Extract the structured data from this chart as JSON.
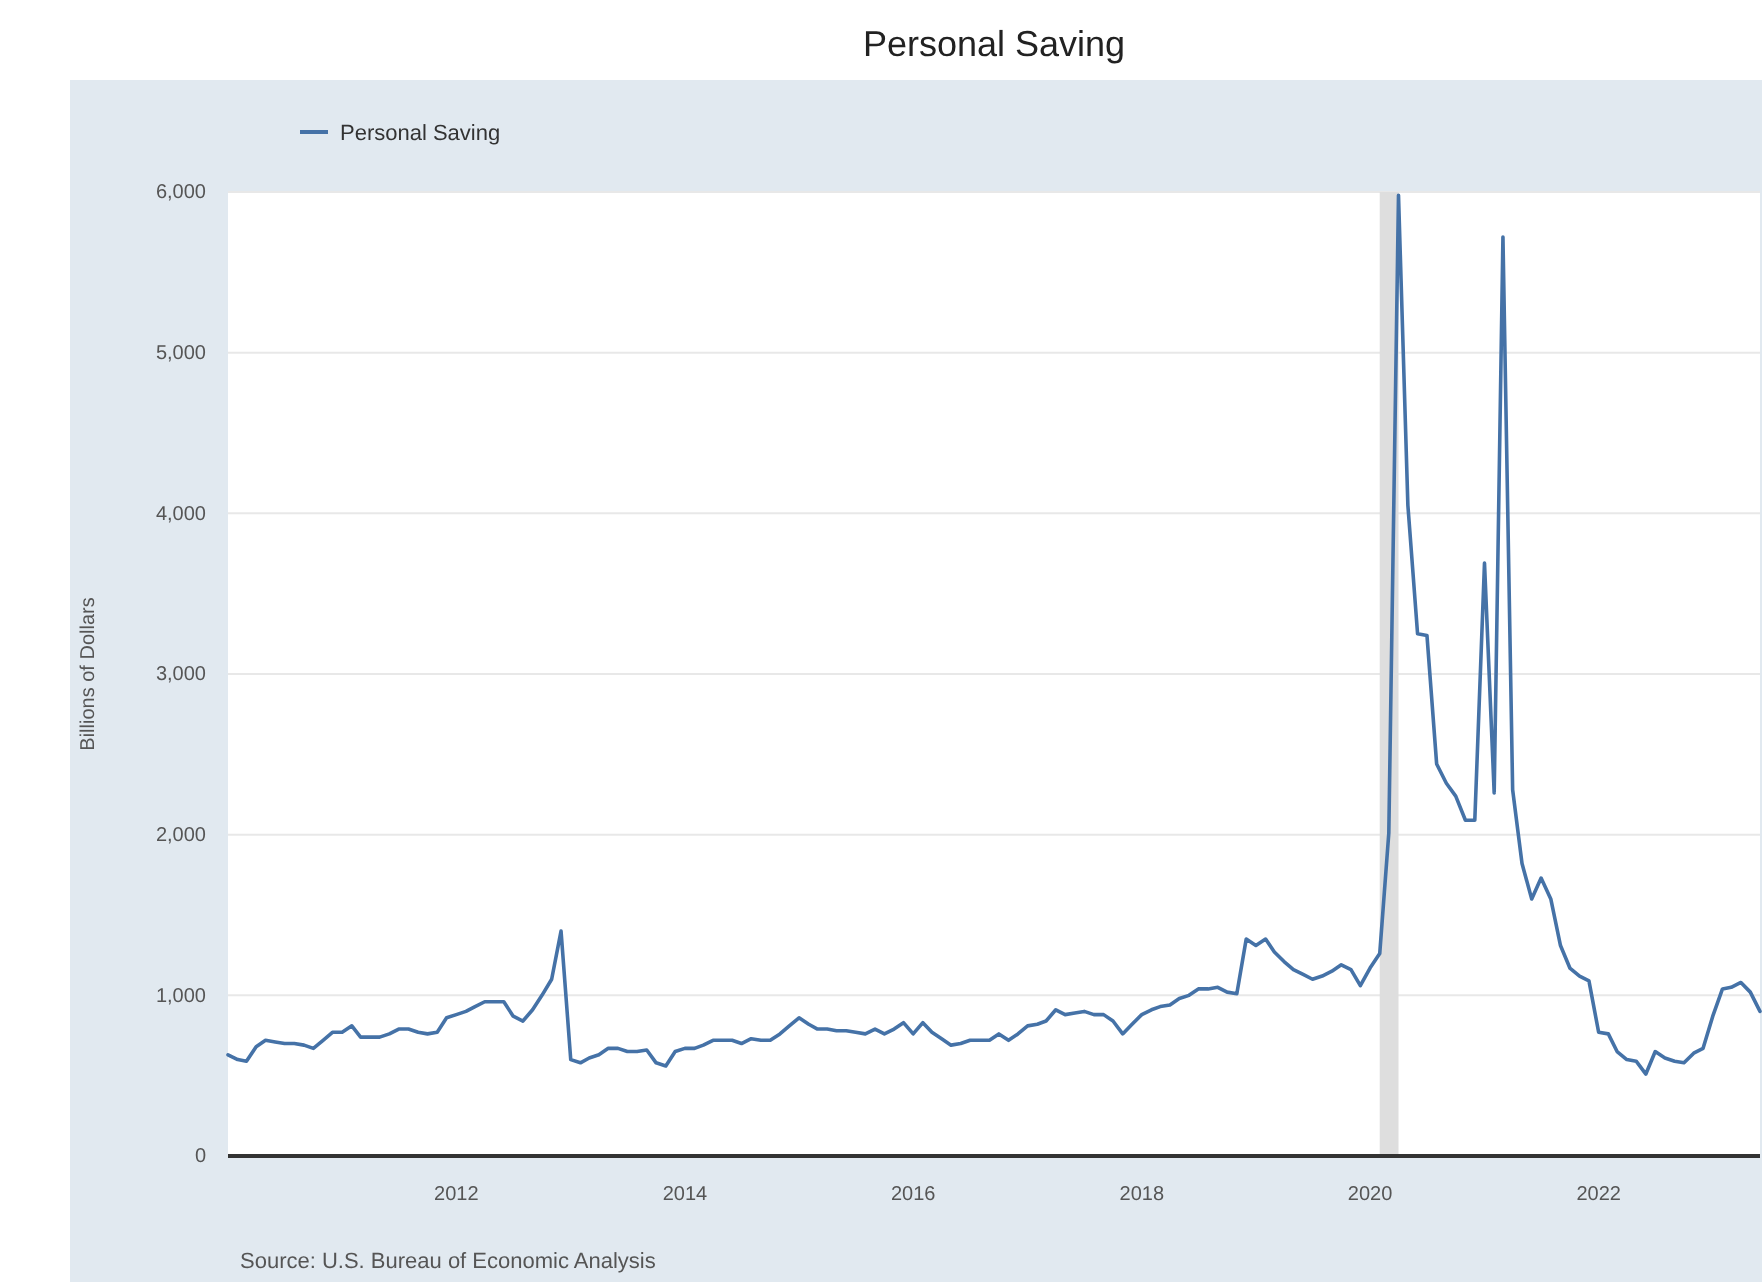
{
  "chart_data": {
    "type": "line",
    "title": "Personal Saving",
    "ylabel": "Billions of Dollars",
    "annotations": [
      "Source: U.S. Bureau of Economic Analysis"
    ],
    "x": [
      "2010-01",
      "2010-02",
      "2010-03",
      "2010-04",
      "2010-05",
      "2010-06",
      "2010-07",
      "2010-08",
      "2010-09",
      "2010-10",
      "2010-11",
      "2010-12",
      "2011-01",
      "2011-02",
      "2011-03",
      "2011-04",
      "2011-05",
      "2011-06",
      "2011-07",
      "2011-08",
      "2011-09",
      "2011-10",
      "2011-11",
      "2011-12",
      "2012-01",
      "2012-02",
      "2012-03",
      "2012-04",
      "2012-05",
      "2012-06",
      "2012-07",
      "2012-08",
      "2012-09",
      "2012-10",
      "2012-11",
      "2012-12",
      "2013-01",
      "2013-02",
      "2013-03",
      "2013-04",
      "2013-05",
      "2013-06",
      "2013-07",
      "2013-08",
      "2013-09",
      "2013-10",
      "2013-11",
      "2013-12",
      "2014-01",
      "2014-02",
      "2014-03",
      "2014-04",
      "2014-05",
      "2014-06",
      "2014-07",
      "2014-08",
      "2014-09",
      "2014-10",
      "2014-11",
      "2014-12",
      "2015-01",
      "2015-02",
      "2015-03",
      "2015-04",
      "2015-05",
      "2015-06",
      "2015-07",
      "2015-08",
      "2015-09",
      "2015-10",
      "2015-11",
      "2015-12",
      "2016-01",
      "2016-02",
      "2016-03",
      "2016-04",
      "2016-05",
      "2016-06",
      "2016-07",
      "2016-08",
      "2016-09",
      "2016-10",
      "2016-11",
      "2016-12",
      "2017-01",
      "2017-02",
      "2017-03",
      "2017-04",
      "2017-05",
      "2017-06",
      "2017-07",
      "2017-08",
      "2017-09",
      "2017-10",
      "2017-11",
      "2017-12",
      "2018-01",
      "2018-02",
      "2018-03",
      "2018-04",
      "2018-05",
      "2018-06",
      "2018-07",
      "2018-08",
      "2018-09",
      "2018-10",
      "2018-11",
      "2018-12",
      "2019-01",
      "2019-02",
      "2019-03",
      "2019-04",
      "2019-05",
      "2019-06",
      "2019-07",
      "2019-08",
      "2019-09",
      "2019-10",
      "2019-11",
      "2019-12",
      "2020-01",
      "2020-02",
      "2020-03",
      "2020-04",
      "2020-05",
      "2020-06",
      "2020-07",
      "2020-08",
      "2020-09",
      "2020-10",
      "2020-11",
      "2020-12",
      "2021-01",
      "2021-02",
      "2021-03",
      "2021-04",
      "2021-05",
      "2021-06",
      "2021-07",
      "2021-08",
      "2021-09",
      "2021-10",
      "2021-11",
      "2021-12",
      "2022-01",
      "2022-02",
      "2022-03",
      "2022-04",
      "2022-05",
      "2022-06",
      "2022-07",
      "2022-08",
      "2022-09",
      "2022-10",
      "2022-11",
      "2022-12",
      "2023-01",
      "2023-02",
      "2023-03",
      "2023-04",
      "2023-05",
      "2023-06"
    ],
    "series": [
      {
        "name": "Personal Saving",
        "color": "#4572a7",
        "values": [
          630,
          600,
          590,
          680,
          720,
          710,
          700,
          700,
          690,
          670,
          720,
          770,
          770,
          810,
          740,
          740,
          740,
          760,
          790,
          790,
          770,
          760,
          770,
          860,
          880,
          900,
          930,
          960,
          960,
          960,
          870,
          840,
          910,
          1000,
          1100,
          1400,
          600,
          580,
          610,
          630,
          670,
          670,
          650,
          650,
          660,
          580,
          560,
          650,
          670,
          670,
          690,
          720,
          720,
          720,
          700,
          730,
          720,
          720,
          760,
          810,
          860,
          820,
          790,
          790,
          780,
          780,
          770,
          760,
          790,
          760,
          790,
          830,
          760,
          830,
          770,
          730,
          690,
          700,
          720,
          720,
          720,
          760,
          720,
          760,
          810,
          820,
          840,
          910,
          880,
          890,
          900,
          880,
          880,
          840,
          760,
          820,
          880,
          910,
          930,
          940,
          980,
          1000,
          1040,
          1040,
          1050,
          1020,
          1010,
          1350,
          1310,
          1350,
          1270,
          1210,
          1160,
          1130,
          1100,
          1120,
          1150,
          1190,
          1160,
          1060,
          1170,
          1260,
          2010,
          5980,
          4050,
          3250,
          3240,
          2440,
          2320,
          2240,
          2090,
          2090,
          3690,
          2260,
          5720,
          2280,
          1820,
          1600,
          1730,
          1600,
          1310,
          1170,
          1120,
          1090,
          770,
          760,
          650,
          600,
          590,
          510,
          650,
          610,
          590,
          580,
          640,
          670,
          870,
          1040,
          1050,
          1080,
          1020,
          900
        ]
      }
    ],
    "xlim": [
      "2010-01",
      "2023-06"
    ],
    "xticks": [
      "2012",
      "2014",
      "2016",
      "2018",
      "2020",
      "2022"
    ],
    "ylim": [
      0,
      6000
    ],
    "yticks": [
      0,
      {
        "value": 1000,
        "label": "1,000"
      },
      {
        "value": 2000,
        "label": "2,000"
      },
      {
        "value": 3000,
        "label": "3,000"
      },
      {
        "value": 4000,
        "label": "4,000"
      },
      {
        "value": 5000,
        "label": "5,000"
      },
      {
        "value": 6000,
        "label": "6,000"
      }
    ],
    "grid": "y",
    "legend": "top left",
    "bands": [
      {
        "axis": "x",
        "from": "2020-02",
        "to": "2020-04",
        "color": "#dedede"
      }
    ]
  }
}
